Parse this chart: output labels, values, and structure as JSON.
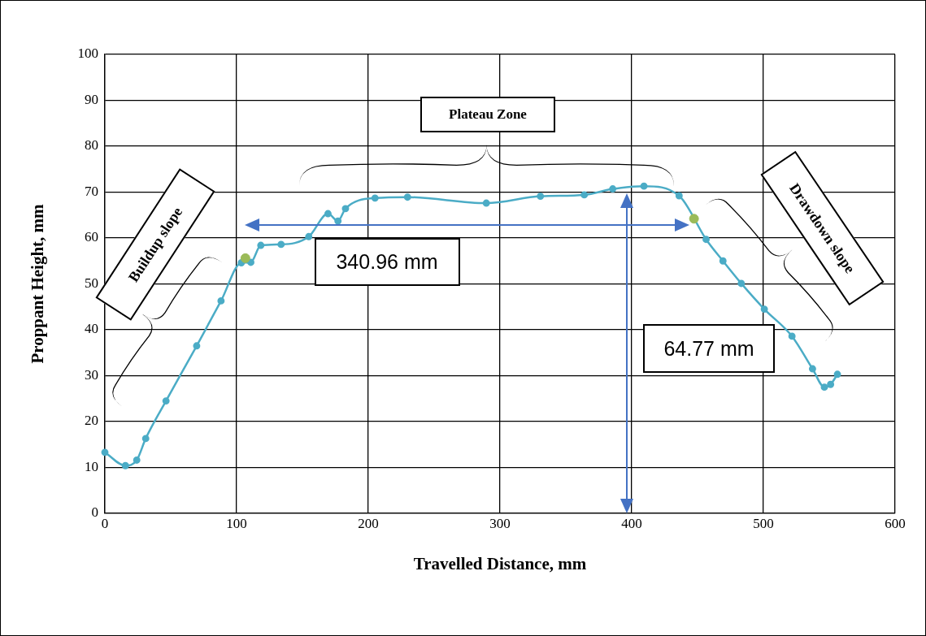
{
  "chart_data": {
    "type": "line",
    "xlabel": "Travelled Distance, mm",
    "ylabel": "Proppant Height, mm",
    "xlim": [
      0,
      600
    ],
    "xticks": [
      0,
      100,
      200,
      300,
      400,
      500,
      600
    ],
    "ylim": [
      0,
      100
    ],
    "yticks": [
      0,
      10,
      20,
      30,
      40,
      50,
      60,
      70,
      80,
      90,
      100
    ],
    "grid": true,
    "legend": false,
    "marker": "circle",
    "line_style": "solid",
    "series": [
      {
        "color": "#4bacc6",
        "x": [
          0,
          15.6,
          24.2,
          31,
          46.4,
          69.7,
          88.2,
          103.6,
          110.8,
          118.4,
          133.8,
          154.8,
          169.4,
          177,
          182.7,
          205.1,
          229.8,
          289.6,
          330.7,
          364,
          385.6,
          409.3,
          436,
          456.5,
          469.3,
          483.2,
          500.7,
          521.7,
          537.3,
          546.3,
          551,
          556.2
        ],
        "values": [
          13.3,
          10.4,
          11.6,
          16.3,
          24.5,
          36.5,
          46.3,
          54.6,
          54.7,
          58.4,
          58.6,
          60.3,
          65.3,
          63.7,
          66.4,
          68.7,
          68.9,
          67.6,
          69.1,
          69.4,
          70.7,
          71.3,
          69.2,
          59.7,
          55,
          50.1,
          44.5,
          38.6,
          31.5,
          27.5,
          28.1,
          30.3
        ]
      },
      {
        "type": "scatter",
        "color": "#9bbb59",
        "x": [
          106.7,
          447.3
        ],
        "values": [
          55.6,
          64.2
        ]
      }
    ],
    "annotations": [
      "340.96 mm",
      "64.77 mm",
      "Plateau Zone",
      "Buildup slope",
      "Drawdown slope"
    ]
  }
}
